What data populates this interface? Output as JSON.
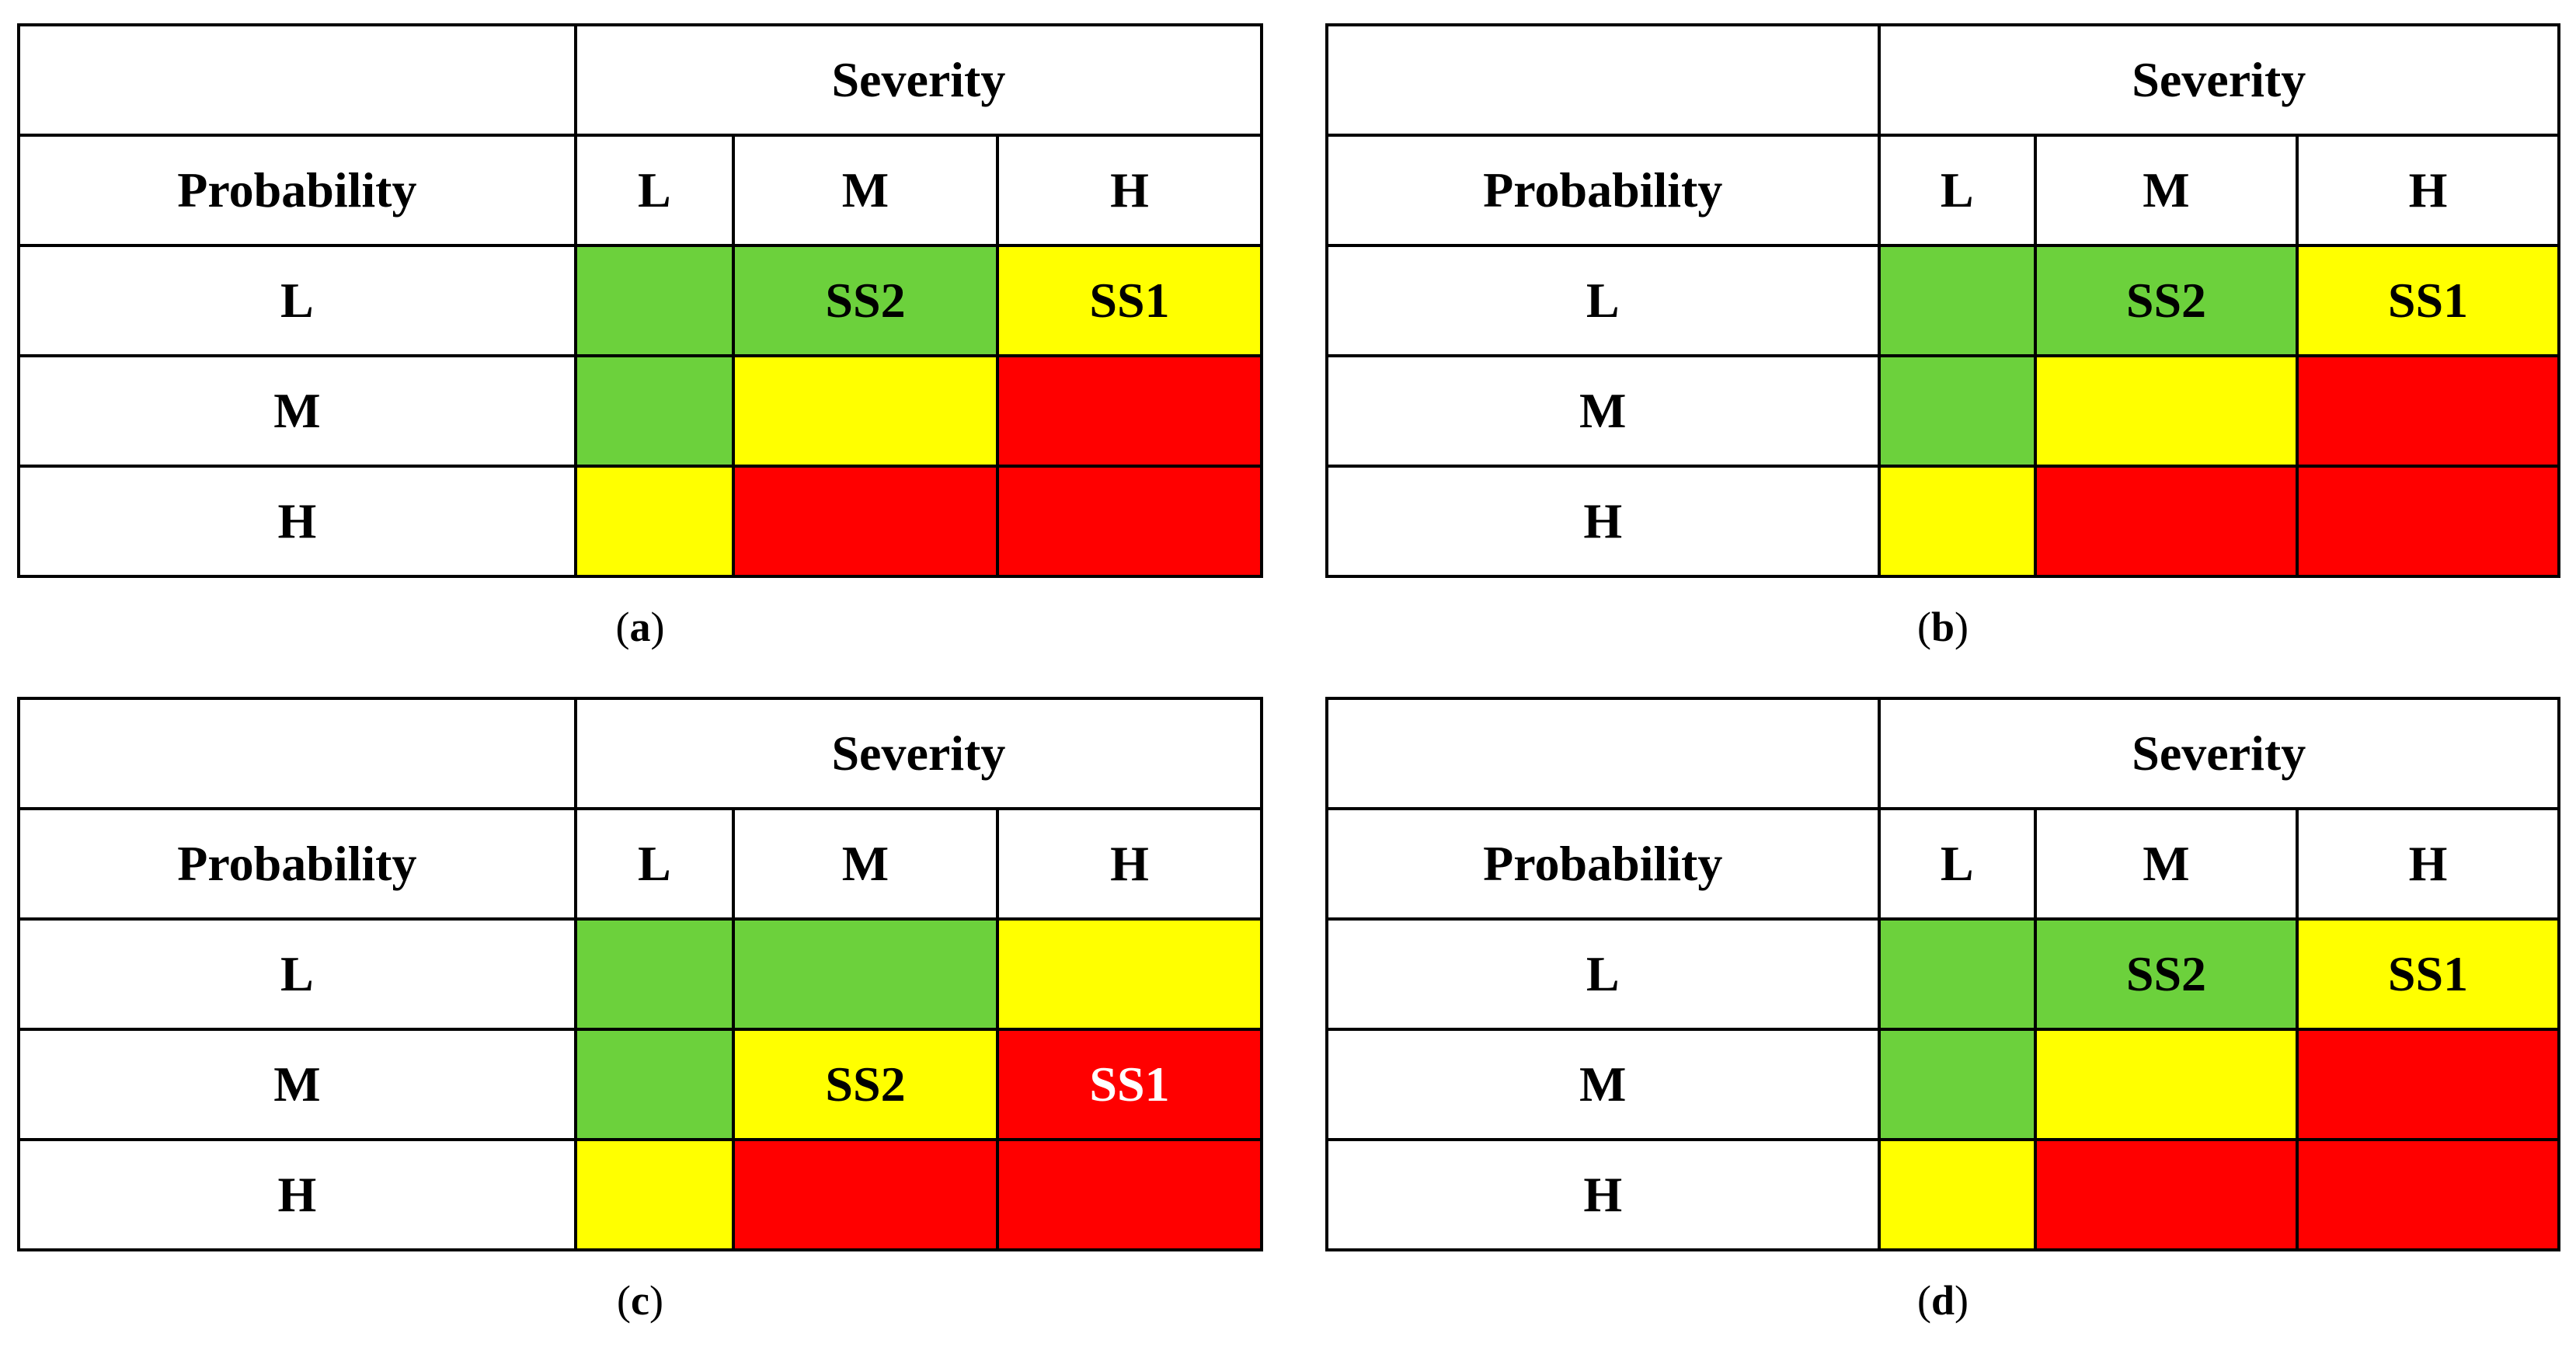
{
  "palette": {
    "green": "#6CD13C",
    "yellow": "#FFFF00",
    "red": "#FF0000",
    "border": "#000000",
    "background": "#FFFFFF"
  },
  "panels": [
    {
      "id": "a",
      "caption": {
        "open": "(",
        "letter": "a",
        "close": ")"
      },
      "table": {
        "severity_label": "Severity",
        "probability_label": "Probability",
        "severity_levels": [
          "L",
          "M",
          "H"
        ],
        "probability_levels": [
          "L",
          "M",
          "H"
        ],
        "cells": [
          [
            {
              "risk": "green",
              "label": ""
            },
            {
              "risk": "green",
              "label": "SS2",
              "label_color": "#000000"
            },
            {
              "risk": "yellow",
              "label": "SS1",
              "label_color": "#000000"
            }
          ],
          [
            {
              "risk": "green",
              "label": ""
            },
            {
              "risk": "yellow",
              "label": ""
            },
            {
              "risk": "red",
              "label": ""
            }
          ],
          [
            {
              "risk": "yellow",
              "label": ""
            },
            {
              "risk": "red",
              "label": ""
            },
            {
              "risk": "red",
              "label": ""
            }
          ]
        ]
      }
    },
    {
      "id": "b",
      "caption": {
        "open": "(",
        "letter": "b",
        "close": ")"
      },
      "table": {
        "severity_label": "Severity",
        "probability_label": "Probability",
        "severity_levels": [
          "L",
          "M",
          "H"
        ],
        "probability_levels": [
          "L",
          "M",
          "H"
        ],
        "cells": [
          [
            {
              "risk": "green",
              "label": ""
            },
            {
              "risk": "green",
              "label": "SS2",
              "label_color": "#000000"
            },
            {
              "risk": "yellow",
              "label": "SS1",
              "label_color": "#000000"
            }
          ],
          [
            {
              "risk": "green",
              "label": ""
            },
            {
              "risk": "yellow",
              "label": ""
            },
            {
              "risk": "red",
              "label": ""
            }
          ],
          [
            {
              "risk": "yellow",
              "label": ""
            },
            {
              "risk": "red",
              "label": ""
            },
            {
              "risk": "red",
              "label": ""
            }
          ]
        ]
      }
    },
    {
      "id": "c",
      "caption": {
        "open": "(",
        "letter": "c",
        "close": ")"
      },
      "table": {
        "severity_label": "Severity",
        "probability_label": "Probability",
        "severity_levels": [
          "L",
          "M",
          "H"
        ],
        "probability_levels": [
          "L",
          "M",
          "H"
        ],
        "cells": [
          [
            {
              "risk": "green",
              "label": ""
            },
            {
              "risk": "green",
              "label": ""
            },
            {
              "risk": "yellow",
              "label": ""
            }
          ],
          [
            {
              "risk": "green",
              "label": ""
            },
            {
              "risk": "yellow",
              "label": "SS2",
              "label_color": "#000000"
            },
            {
              "risk": "red",
              "label": "SS1",
              "label_color": "#FFFFFF"
            }
          ],
          [
            {
              "risk": "yellow",
              "label": ""
            },
            {
              "risk": "red",
              "label": ""
            },
            {
              "risk": "red",
              "label": ""
            }
          ]
        ]
      }
    },
    {
      "id": "d",
      "caption": {
        "open": "(",
        "letter": "d",
        "close": ")"
      },
      "table": {
        "severity_label": "Severity",
        "probability_label": "Probability",
        "severity_levels": [
          "L",
          "M",
          "H"
        ],
        "probability_levels": [
          "L",
          "M",
          "H"
        ],
        "cells": [
          [
            {
              "risk": "green",
              "label": ""
            },
            {
              "risk": "green",
              "label": "SS2",
              "label_color": "#000000"
            },
            {
              "risk": "yellow",
              "label": "SS1",
              "label_color": "#000000"
            }
          ],
          [
            {
              "risk": "green",
              "label": ""
            },
            {
              "risk": "yellow",
              "label": ""
            },
            {
              "risk": "red",
              "label": ""
            }
          ],
          [
            {
              "risk": "yellow",
              "label": ""
            },
            {
              "risk": "red",
              "label": ""
            },
            {
              "risk": "red",
              "label": ""
            }
          ]
        ]
      }
    }
  ]
}
